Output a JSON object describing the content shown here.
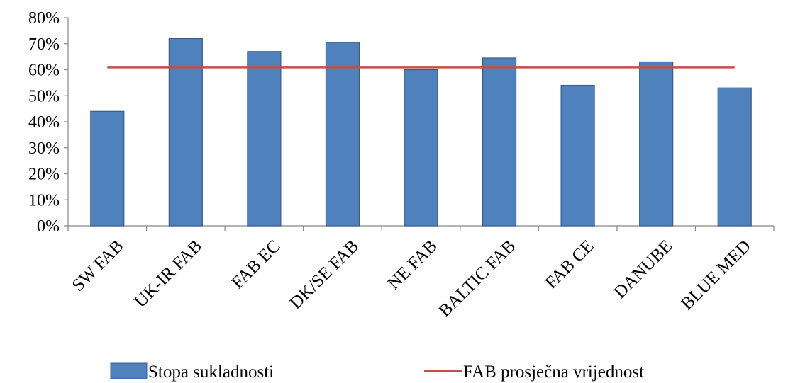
{
  "chart_data": {
    "type": "bar",
    "categories": [
      "SW FAB",
      "UK-IR FAB",
      "FAB EC",
      "DK/SE FAB",
      "NE FAB",
      "BALTIC FAB",
      "FAB CE",
      "DANUBE",
      "BLUE MED"
    ],
    "series": [
      {
        "name": "Stopa sukladnosti",
        "type": "bar",
        "values": [
          44,
          72,
          67,
          70.5,
          60,
          64.5,
          54,
          63,
          53
        ],
        "color": "#4F81BD"
      },
      {
        "name": "FAB prosječna vrijednost",
        "type": "line",
        "values": [
          61,
          61,
          61,
          61,
          61,
          61,
          61,
          61,
          61
        ],
        "color": "#C0504D"
      }
    ],
    "ylim": [
      0,
      80
    ],
    "yticks": [
      0,
      10,
      20,
      30,
      40,
      50,
      60,
      70,
      80
    ],
    "ytick_suffix": "%",
    "grid": false,
    "legend": "bottom",
    "title": "",
    "xlabel": "",
    "ylabel": ""
  }
}
